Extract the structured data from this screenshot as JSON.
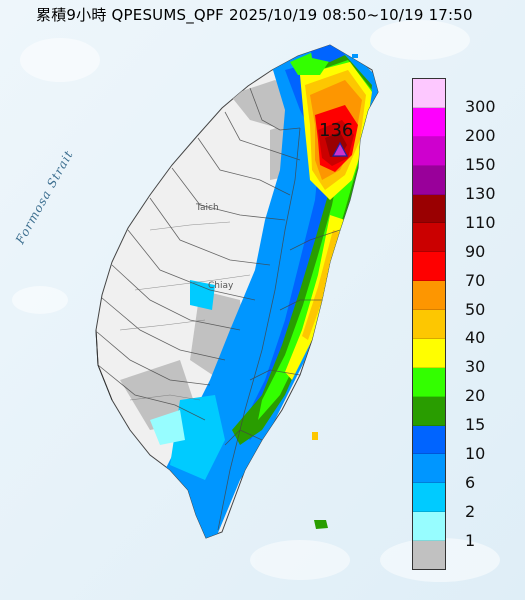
{
  "title": "累積9小時 QPESUMS_QPF 2025/10/19 08:50~10/19 17:50",
  "water_label": "Formosa Strait",
  "max_marker": {
    "value": "136",
    "icon": "triangle-icon",
    "color": "#cc33cc"
  },
  "city_labels": [
    "Taich",
    "Chiay"
  ],
  "legend": {
    "unit_levels": [
      {
        "label": "300",
        "color": "#fdc8ff"
      },
      {
        "label": "200",
        "color": "#fe00fe"
      },
      {
        "label": "150",
        "color": "#ce00ce"
      },
      {
        "label": "130",
        "color": "#99009a"
      },
      {
        "label": "110",
        "color": "#9a0001"
      },
      {
        "label": "90",
        "color": "#cb0000"
      },
      {
        "label": "70",
        "color": "#fe0000"
      },
      {
        "label": "50",
        "color": "#fd9601"
      },
      {
        "label": "40",
        "color": "#fdc701"
      },
      {
        "label": "30",
        "color": "#fffe00"
      },
      {
        "label": "20",
        "color": "#33ff00"
      },
      {
        "label": "15",
        "color": "#299d00"
      },
      {
        "label": "10",
        "color": "#0064ff"
      },
      {
        "label": "6",
        "color": "#0096ff"
      },
      {
        "label": "2",
        "color": "#00cbff"
      },
      {
        "label": "1",
        "color": "#97fdff"
      },
      {
        "label": "",
        "color": "#c1c1c1"
      }
    ]
  },
  "colors": {
    "sea": "#e9f3f9",
    "land_dry": "#efefef",
    "land_gray": "#c8c8c8"
  }
}
